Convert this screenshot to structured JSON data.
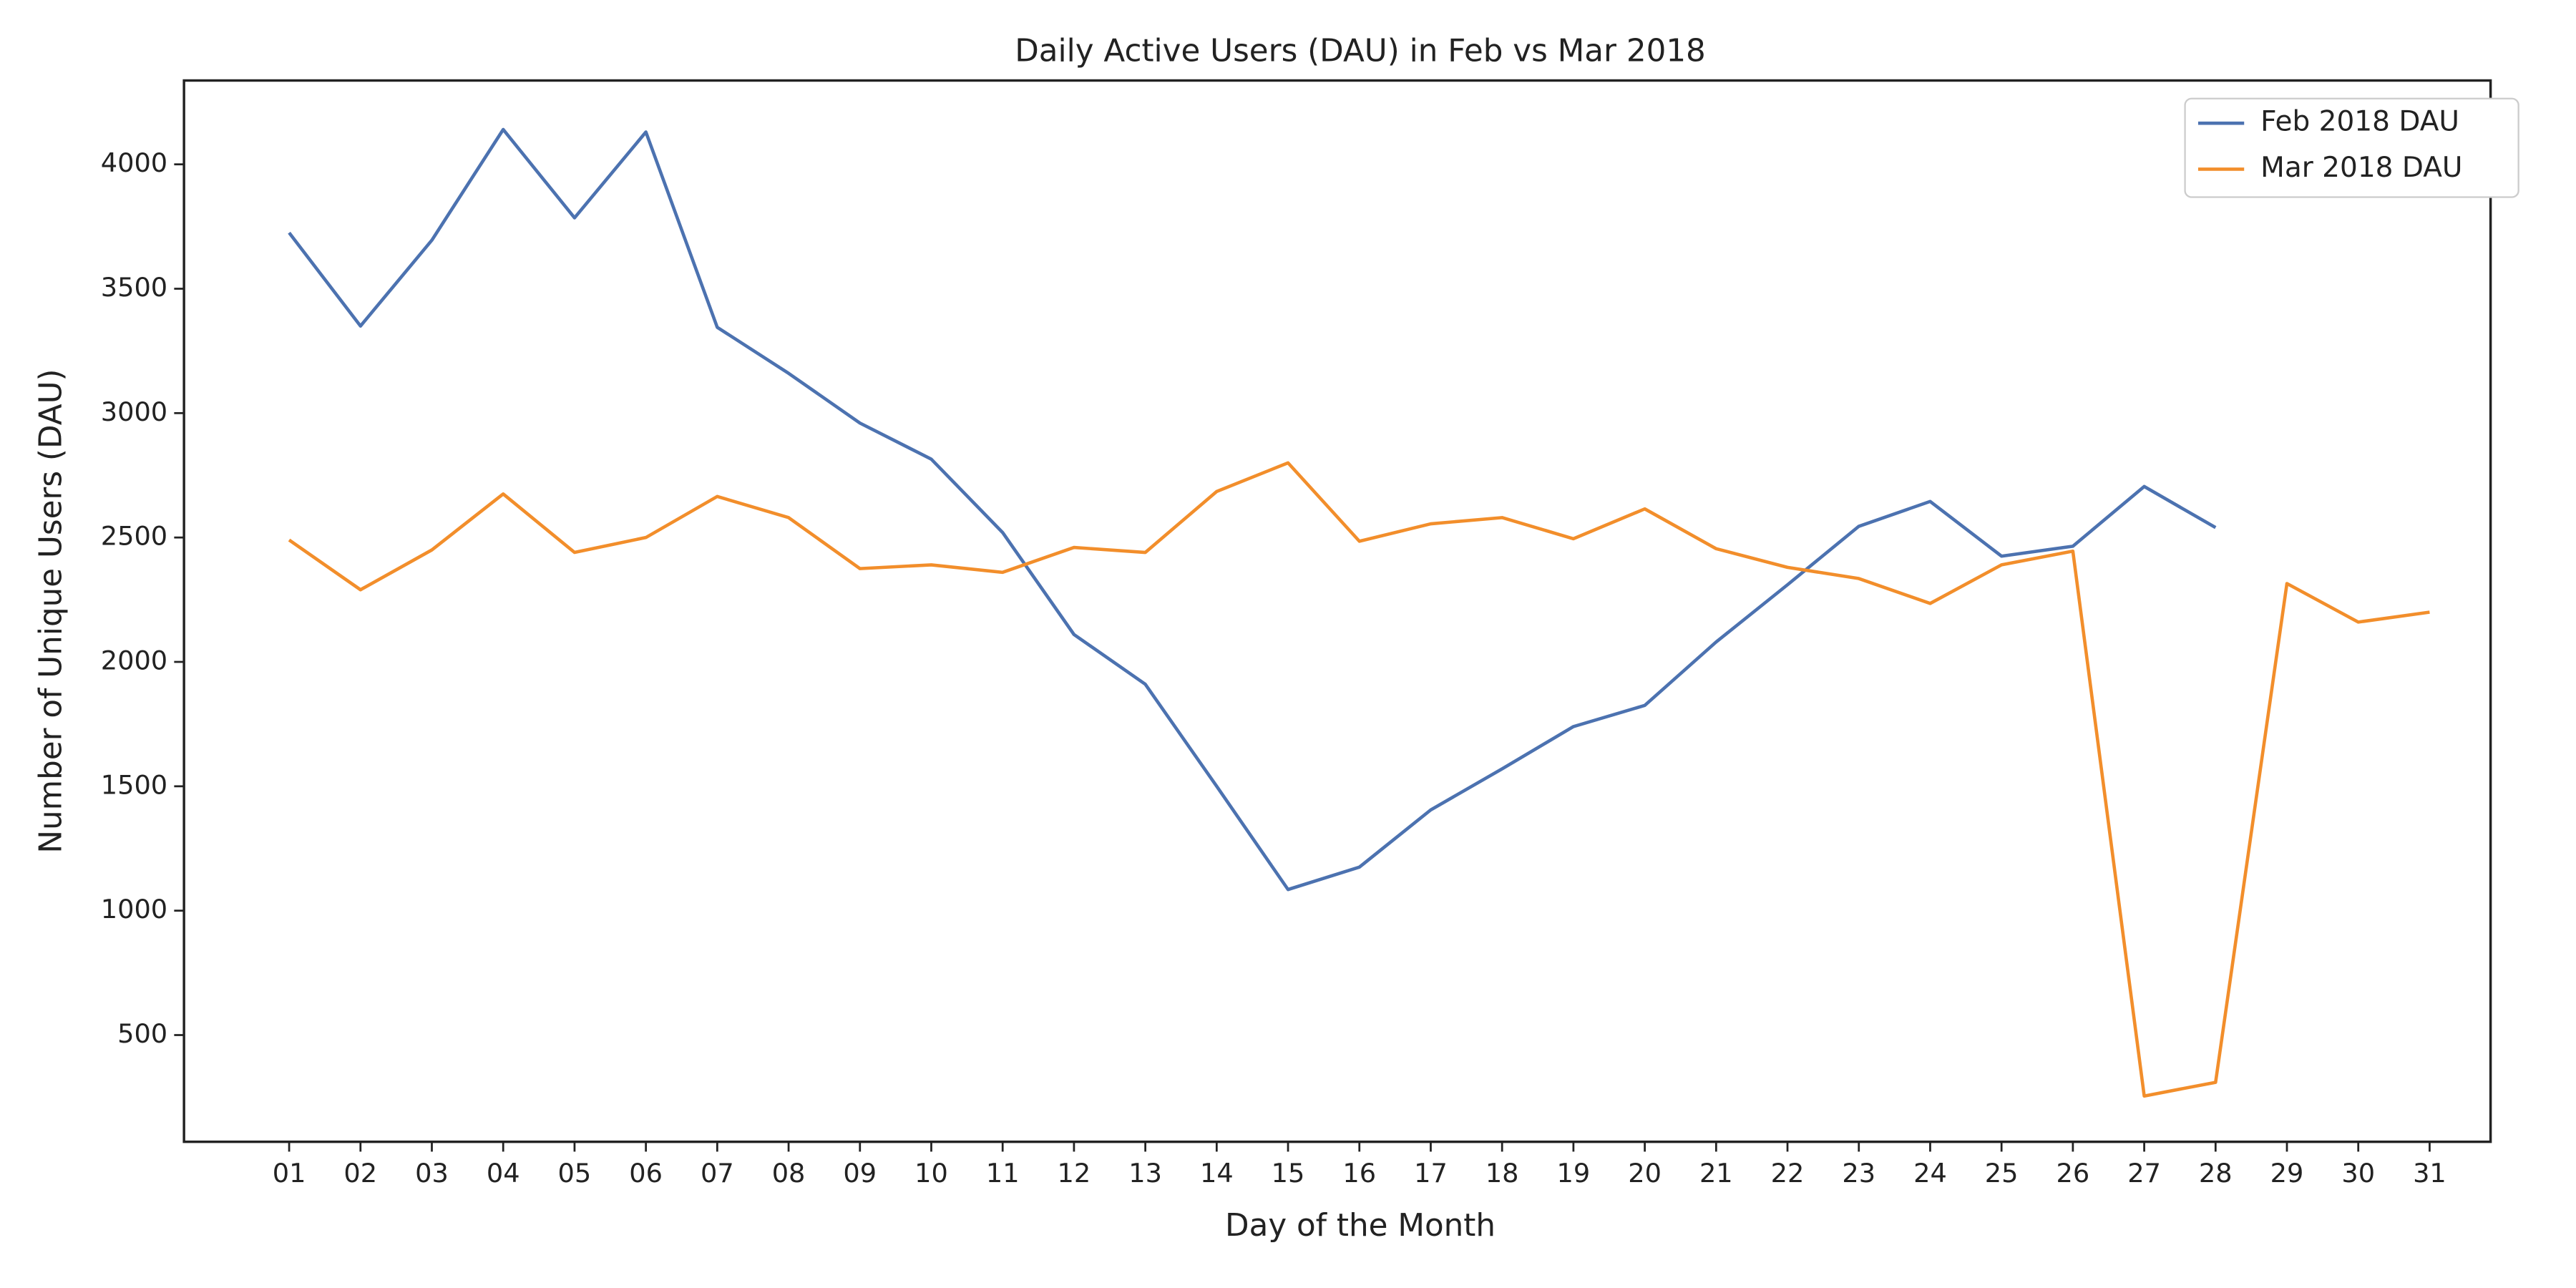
{
  "chart_data": {
    "type": "line",
    "title": "Daily Active Users (DAU) in Feb vs Mar 2018",
    "xlabel": "Day of the Month",
    "ylabel": "Number of Unique Users (DAU)",
    "categories": [
      "01",
      "02",
      "03",
      "04",
      "05",
      "06",
      "07",
      "08",
      "09",
      "10",
      "11",
      "12",
      "13",
      "14",
      "15",
      "16",
      "17",
      "18",
      "19",
      "20",
      "21",
      "22",
      "23",
      "24",
      "25",
      "26",
      "27",
      "28",
      "29",
      "30",
      "31"
    ],
    "series": [
      {
        "name": "Feb 2018 DAU",
        "color": "#4c72b0",
        "values": [
          3725,
          3350,
          3695,
          4140,
          3785,
          4130,
          3345,
          3160,
          2960,
          2815,
          2520,
          2110,
          1910,
          1500,
          1085,
          1175,
          1405,
          1570,
          1740,
          1825,
          2080,
          2310,
          2545,
          2645,
          2425,
          2465,
          2705,
          2540,
          null,
          null,
          null
        ]
      },
      {
        "name": "Mar 2018 DAU",
        "color": "#f28e2b",
        "values": [
          2490,
          2290,
          2450,
          2675,
          2440,
          2500,
          2665,
          2580,
          2375,
          2390,
          2360,
          2460,
          2440,
          2685,
          2800,
          2485,
          2555,
          2580,
          2495,
          2615,
          2455,
          2380,
          2335,
          2235,
          2390,
          2445,
          255,
          310,
          2315,
          2160,
          2200
        ]
      }
    ],
    "ylim": [
      71,
      4337
    ],
    "yticks": [
      500,
      1000,
      1500,
      2000,
      2500,
      3000,
      3500,
      4000
    ],
    "legend": "upper right"
  }
}
